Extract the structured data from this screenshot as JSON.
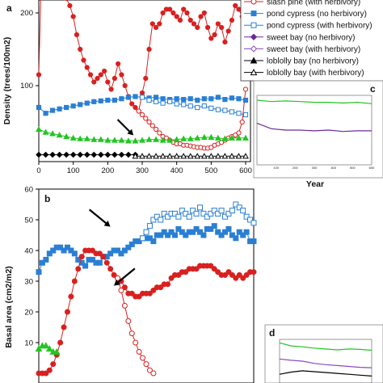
{
  "chart_data": [
    {
      "panel": "a",
      "type": "line",
      "xlabel": "",
      "ylabel": "Density (trees/100m2)",
      "xlim": [
        0,
        600
      ],
      "ylim": [
        0,
        300
      ],
      "xticks": [
        0,
        100,
        200,
        300,
        400,
        500,
        600
      ],
      "yticks": [
        100,
        200
      ],
      "legend_placement": "top-right",
      "legend": [
        {
          "label": "slash pine (with herbivory)",
          "color": "#d92020",
          "marker": "circle",
          "filled": false
        },
        {
          "label": "pond cypress (no herbivory)",
          "color": "#2a7fd4",
          "marker": "square",
          "filled": true
        },
        {
          "label": "pond cypress (with herbivory)",
          "color": "#2a7fd4",
          "marker": "square",
          "filled": false
        },
        {
          "label": "sweet bay (no herbivory)",
          "color": "#6a2a9a",
          "marker": "diamond",
          "filled": true
        },
        {
          "label": "sweet bay (with herbivory)",
          "color": "#8a4ac0",
          "marker": "diamond",
          "filled": false
        },
        {
          "label": "loblolly bay (no herbivory)",
          "color": "#000000",
          "marker": "triangle",
          "filled": true
        },
        {
          "label": "loblolly bay (with herbivory)",
          "color": "#000000",
          "marker": "triangle",
          "filled": false
        }
      ],
      "series": [
        {
          "color": "#d92020",
          "marker": "circle",
          "filled": true,
          "x": [
            0,
            10,
            20,
            30,
            40,
            50,
            60,
            70,
            80,
            90,
            100,
            110,
            120,
            130,
            140,
            150,
            160,
            170,
            180,
            190,
            200,
            210,
            220,
            230,
            240,
            250,
            260,
            270,
            280,
            290,
            300,
            310,
            320,
            330,
            340,
            350,
            360,
            370,
            380,
            390,
            400,
            410,
            420,
            430,
            440,
            450,
            460,
            470,
            480,
            490,
            500,
            510,
            520,
            530,
            540,
            550,
            560,
            570,
            580,
            590,
            600
          ],
          "y": [
            115,
            305,
            285,
            280,
            265,
            245,
            235,
            230,
            220,
            210,
            195,
            170,
            150,
            135,
            125,
            115,
            105,
            110,
            115,
            120,
            105,
            95,
            110,
            130,
            115,
            100,
            85,
            75,
            70,
            65,
            90,
            110,
            150,
            185,
            180,
            185,
            200,
            205,
            205,
            200,
            195,
            190,
            205,
            200,
            190,
            185,
            180,
            195,
            200,
            180,
            165,
            170,
            185,
            180,
            160,
            175,
            190,
            210,
            205,
            195,
            185
          ]
        },
        {
          "color": "#d92020",
          "marker": "circle",
          "filled": false,
          "x": [
            290,
            300,
            310,
            320,
            330,
            340,
            350,
            360,
            370,
            380,
            390,
            400,
            410,
            420,
            430,
            440,
            450,
            460,
            470,
            480,
            490,
            500,
            510,
            520,
            530,
            540,
            550,
            560,
            570,
            580,
            590,
            600
          ],
          "y": [
            65,
            60,
            55,
            50,
            45,
            40,
            35,
            30,
            28,
            25,
            22,
            20,
            20,
            18,
            18,
            17,
            16,
            15,
            15,
            14,
            14,
            15,
            18,
            20,
            22,
            25,
            28,
            30,
            32,
            35,
            50,
            95
          ]
        },
        {
          "color": "#2a7fd4",
          "marker": "square",
          "filled": true,
          "x": [
            0,
            20,
            40,
            60,
            80,
            100,
            120,
            140,
            160,
            180,
            200,
            220,
            240,
            260,
            280,
            300,
            320,
            340,
            360,
            380,
            400,
            420,
            440,
            460,
            480,
            500,
            520,
            540,
            560,
            580,
            600
          ],
          "y": [
            70,
            62,
            66,
            68,
            70,
            72,
            74,
            76,
            78,
            79,
            80,
            80,
            82,
            84,
            85,
            84,
            83,
            84,
            82,
            81,
            82,
            81,
            82,
            80,
            82,
            82,
            84,
            81,
            83,
            82,
            80
          ]
        },
        {
          "color": "#2a7fd4",
          "marker": "square",
          "filled": false,
          "x": [
            300,
            320,
            340,
            360,
            380,
            400,
            420,
            440,
            460,
            480,
            500,
            520,
            540,
            560,
            580,
            600
          ],
          "y": [
            84,
            80,
            78,
            76,
            78,
            75,
            74,
            72,
            70,
            72,
            69,
            67,
            66,
            64,
            62,
            60
          ]
        },
        {
          "color": "#22c522",
          "marker": "triangle",
          "filled": true,
          "x": [
            0,
            20,
            40,
            60,
            80,
            100,
            120,
            140,
            160,
            180,
            200,
            220,
            240,
            260,
            280,
            300,
            320,
            340,
            360,
            380,
            400,
            420,
            440,
            460,
            480,
            500,
            520,
            540,
            560,
            580,
            600
          ],
          "y": [
            40,
            36,
            34,
            32,
            30,
            28,
            27,
            27,
            26,
            26,
            25,
            25,
            25,
            24,
            24,
            25,
            26,
            26,
            25,
            25,
            26,
            27,
            27,
            28,
            29,
            29,
            28,
            27,
            28,
            28,
            28
          ]
        },
        {
          "color": "#000000",
          "marker": "diamond",
          "filled": true,
          "x": [
            0,
            20,
            40,
            60,
            80,
            100,
            120,
            140,
            160,
            180,
            200,
            220,
            240,
            260,
            280
          ],
          "y": [
            5,
            5,
            5,
            5,
            5,
            5,
            5,
            5,
            5,
            5,
            5,
            5,
            5,
            5,
            5
          ]
        },
        {
          "color": "#000000",
          "marker": "triangle",
          "filled": false,
          "x": [
            280,
            300,
            320,
            340,
            360,
            380,
            400,
            420,
            440,
            460,
            480,
            500,
            520,
            540,
            560,
            580,
            600
          ],
          "y": [
            3,
            3,
            3,
            3,
            3,
            3,
            3,
            3,
            3,
            3,
            3,
            3,
            3,
            3,
            3,
            3,
            3
          ]
        }
      ],
      "annotations": [
        {
          "type": "arrow",
          "x": 285,
          "y": 80
        }
      ]
    },
    {
      "panel": "b",
      "type": "line",
      "xlabel": "",
      "ylabel": "Basal area (cm2/m2)",
      "xlim": [
        0,
        600
      ],
      "ylim": [
        0,
        60
      ],
      "yticks": [
        10,
        20,
        30,
        40,
        50,
        60
      ],
      "series": [
        {
          "color": "#2a7fd4",
          "marker": "square",
          "filled": true,
          "x": [
            0,
            10,
            20,
            30,
            40,
            50,
            60,
            70,
            80,
            90,
            100,
            110,
            120,
            130,
            140,
            150,
            160,
            170,
            180,
            190,
            200,
            210,
            220,
            230,
            240,
            250,
            260,
            270,
            280,
            290,
            300,
            310,
            320,
            330,
            340,
            350,
            360,
            370,
            380,
            390,
            400,
            410,
            420,
            430,
            440,
            450,
            460,
            470,
            480,
            490,
            500,
            510,
            520,
            530,
            540,
            550,
            560,
            570,
            580,
            590,
            600
          ],
          "y": [
            33,
            36,
            37,
            39,
            40,
            41,
            41,
            40,
            41,
            40,
            39,
            37,
            36,
            35,
            37,
            37,
            36,
            36,
            38,
            38,
            39,
            40,
            40,
            39,
            40,
            41,
            42,
            43,
            43,
            44,
            44,
            44,
            43,
            45,
            45,
            46,
            45,
            46,
            45,
            47,
            46,
            45,
            46,
            46,
            47,
            46,
            45,
            47,
            47,
            48,
            46,
            45,
            46,
            47,
            45,
            44,
            46,
            45,
            46,
            43,
            43
          ]
        },
        {
          "color": "#2a7fd4",
          "marker": "square",
          "filled": false,
          "x": [
            290,
            300,
            310,
            320,
            330,
            340,
            350,
            360,
            370,
            380,
            390,
            400,
            410,
            420,
            430,
            440,
            450,
            460,
            470,
            480,
            490,
            500,
            510,
            520,
            530,
            540,
            550,
            560,
            570,
            580,
            590,
            600
          ],
          "y": [
            44,
            46,
            48,
            50,
            51,
            50,
            52,
            51,
            52,
            52,
            51,
            53,
            52,
            51,
            53,
            52,
            54,
            52,
            51,
            52,
            53,
            52,
            53,
            51,
            52,
            53,
            55,
            54,
            53,
            51,
            50,
            49
          ]
        },
        {
          "color": "#d92020",
          "marker": "circle",
          "filled": true,
          "x": [
            0,
            10,
            20,
            30,
            40,
            50,
            60,
            70,
            80,
            90,
            100,
            110,
            120,
            130,
            140,
            150,
            160,
            170,
            180,
            190,
            200,
            210,
            220,
            230,
            240,
            250,
            260,
            270,
            280,
            290,
            300,
            310,
            320,
            330,
            340,
            350,
            360,
            370,
            380,
            390,
            400,
            410,
            420,
            430,
            440,
            450,
            460,
            470,
            480,
            490,
            500,
            510,
            520,
            530,
            540,
            550,
            560,
            570,
            580,
            590,
            600
          ],
          "y": [
            0,
            0,
            0,
            1,
            3,
            6,
            10,
            15,
            20,
            25,
            30,
            34,
            38,
            40,
            40,
            40,
            39,
            39,
            38,
            36,
            34,
            32,
            31,
            30,
            28,
            26,
            26,
            25,
            25,
            26,
            26,
            26,
            27,
            28,
            28,
            29,
            29,
            31,
            32,
            32,
            33,
            33,
            34,
            34,
            34,
            35,
            35,
            35,
            35,
            34,
            33,
            32,
            32,
            33,
            32,
            31,
            32,
            31,
            32,
            33,
            33
          ]
        },
        {
          "color": "#d92020",
          "marker": "circle",
          "filled": false,
          "x": [
            220,
            230,
            240,
            250,
            260,
            270,
            280,
            290,
            300,
            310,
            320
          ],
          "y": [
            31,
            27,
            22,
            17,
            13,
            10,
            7,
            5,
            3,
            1,
            0
          ]
        },
        {
          "color": "#22c522",
          "marker": "triangle",
          "filled": true,
          "x": [
            0,
            10,
            20,
            30,
            40,
            50
          ],
          "y": [
            8,
            9,
            9,
            8,
            7,
            7
          ]
        }
      ],
      "annotations": [
        {
          "type": "arrow",
          "x": 200,
          "y": 47
        },
        {
          "type": "arrow",
          "x": 250,
          "y": 32
        }
      ]
    },
    {
      "panel": "c",
      "type": "line",
      "xlabel": "Year",
      "xticks": [
        100,
        200,
        300,
        400,
        500,
        600
      ],
      "series": [
        {
          "color": "#22c522",
          "y": [
            0.93,
            0.91,
            0.92,
            0.91,
            0.9,
            0.9,
            0.89,
            0.9,
            0.88
          ]
        },
        {
          "color": "#6a2a9a",
          "y": [
            0.6,
            0.52,
            0.5,
            0.5,
            0.49,
            0.5,
            0.48,
            0.49,
            0.49
          ]
        }
      ]
    },
    {
      "panel": "d",
      "type": "line",
      "series": [
        {
          "color": "#22c522",
          "y": [
            0.92,
            0.85,
            0.83,
            0.8,
            0.78,
            0.76,
            0.78,
            0.77,
            0.75
          ]
        },
        {
          "color": "#8a4ac0",
          "y": [
            0.55,
            0.52,
            0.5,
            0.45,
            0.42,
            0.4,
            0.38,
            0.36,
            0.35
          ]
        },
        {
          "color": "#000000",
          "y": [
            0.2,
            0.25,
            0.28,
            0.26,
            0.24,
            0.22,
            0.2,
            0.18,
            0.16
          ]
        }
      ]
    }
  ]
}
